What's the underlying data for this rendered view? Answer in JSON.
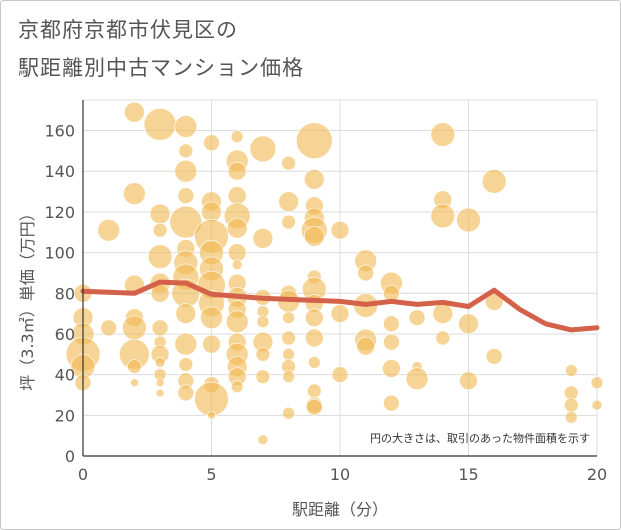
{
  "title_line1": "京都府京都市伏見区の",
  "title_line2": "駅距離別中古マンション価格",
  "note": "円の大きさは、取引のあった物件面積を示す",
  "colors": {
    "bubble": "#f0b954",
    "line": "#d4614a",
    "grid": "#dcdcdc",
    "axis": "#333333",
    "text": "#555555"
  },
  "chart_data": {
    "type": "scatter",
    "xlabel": "駅距離（分）",
    "ylabel": "坪（3.3㎡）単価（万円）",
    "xlim": [
      0,
      20
    ],
    "ylim": [
      0,
      175
    ],
    "xticks": [
      0,
      5,
      10,
      15,
      20
    ],
    "yticks": [
      0,
      20,
      40,
      60,
      80,
      100,
      120,
      140,
      160
    ],
    "grid": true,
    "bubbles": [
      {
        "x": 0,
        "y": 80,
        "s": 9
      },
      {
        "x": 0,
        "y": 68,
        "s": 10
      },
      {
        "x": 0,
        "y": 60,
        "s": 11
      },
      {
        "x": 0,
        "y": 50,
        "s": 17
      },
      {
        "x": 0,
        "y": 44,
        "s": 12
      },
      {
        "x": 0,
        "y": 36,
        "s": 8
      },
      {
        "x": 1,
        "y": 111,
        "s": 11
      },
      {
        "x": 1,
        "y": 63,
        "s": 8
      },
      {
        "x": 2,
        "y": 169,
        "s": 10
      },
      {
        "x": 2,
        "y": 129,
        "s": 11
      },
      {
        "x": 2,
        "y": 84,
        "s": 10
      },
      {
        "x": 2,
        "y": 68,
        "s": 9
      },
      {
        "x": 2,
        "y": 63,
        "s": 12
      },
      {
        "x": 2,
        "y": 50,
        "s": 15
      },
      {
        "x": 2,
        "y": 44,
        "s": 7
      },
      {
        "x": 2,
        "y": 36,
        "s": 4
      },
      {
        "x": 3,
        "y": 163,
        "s": 16
      },
      {
        "x": 3,
        "y": 119,
        "s": 10
      },
      {
        "x": 3,
        "y": 111,
        "s": 7
      },
      {
        "x": 3,
        "y": 98,
        "s": 12
      },
      {
        "x": 3,
        "y": 85,
        "s": 10
      },
      {
        "x": 3,
        "y": 80,
        "s": 9
      },
      {
        "x": 3,
        "y": 63,
        "s": 8
      },
      {
        "x": 3,
        "y": 56,
        "s": 6
      },
      {
        "x": 3,
        "y": 50,
        "s": 9
      },
      {
        "x": 3,
        "y": 46,
        "s": 5
      },
      {
        "x": 3,
        "y": 40,
        "s": 6
      },
      {
        "x": 3,
        "y": 36,
        "s": 4
      },
      {
        "x": 3,
        "y": 31,
        "s": 4
      },
      {
        "x": 4,
        "y": 162,
        "s": 11
      },
      {
        "x": 4,
        "y": 150,
        "s": 7
      },
      {
        "x": 4,
        "y": 140,
        "s": 11
      },
      {
        "x": 4,
        "y": 128,
        "s": 8
      },
      {
        "x": 4,
        "y": 115,
        "s": 16
      },
      {
        "x": 4,
        "y": 102,
        "s": 9
      },
      {
        "x": 4,
        "y": 95,
        "s": 12
      },
      {
        "x": 4,
        "y": 88,
        "s": 13
      },
      {
        "x": 4,
        "y": 80,
        "s": 14
      },
      {
        "x": 4,
        "y": 70,
        "s": 10
      },
      {
        "x": 4,
        "y": 55,
        "s": 11
      },
      {
        "x": 4,
        "y": 45,
        "s": 7
      },
      {
        "x": 4,
        "y": 37,
        "s": 8
      },
      {
        "x": 4,
        "y": 31,
        "s": 8
      },
      {
        "x": 5,
        "y": 154,
        "s": 8
      },
      {
        "x": 5,
        "y": 125,
        "s": 10
      },
      {
        "x": 5,
        "y": 120,
        "s": 10
      },
      {
        "x": 5,
        "y": 108,
        "s": 17
      },
      {
        "x": 5,
        "y": 100,
        "s": 12
      },
      {
        "x": 5,
        "y": 92,
        "s": 12
      },
      {
        "x": 5,
        "y": 84,
        "s": 14
      },
      {
        "x": 5,
        "y": 75,
        "s": 13
      },
      {
        "x": 5,
        "y": 68,
        "s": 11
      },
      {
        "x": 5,
        "y": 55,
        "s": 9
      },
      {
        "x": 5,
        "y": 35,
        "s": 8
      },
      {
        "x": 5,
        "y": 28,
        "s": 17
      },
      {
        "x": 5,
        "y": 20,
        "s": 4
      },
      {
        "x": 6,
        "y": 157,
        "s": 6
      },
      {
        "x": 6,
        "y": 145,
        "s": 11
      },
      {
        "x": 6,
        "y": 140,
        "s": 9
      },
      {
        "x": 6,
        "y": 128,
        "s": 9
      },
      {
        "x": 6,
        "y": 118,
        "s": 13
      },
      {
        "x": 6,
        "y": 112,
        "s": 10
      },
      {
        "x": 6,
        "y": 100,
        "s": 9
      },
      {
        "x": 6,
        "y": 94,
        "s": 5
      },
      {
        "x": 6,
        "y": 85,
        "s": 9
      },
      {
        "x": 6,
        "y": 78,
        "s": 10
      },
      {
        "x": 6,
        "y": 72,
        "s": 9
      },
      {
        "x": 6,
        "y": 66,
        "s": 11
      },
      {
        "x": 6,
        "y": 56,
        "s": 9
      },
      {
        "x": 6,
        "y": 50,
        "s": 11
      },
      {
        "x": 6,
        "y": 44,
        "s": 10
      },
      {
        "x": 6,
        "y": 39,
        "s": 9
      },
      {
        "x": 6,
        "y": 34,
        "s": 6
      },
      {
        "x": 7,
        "y": 151,
        "s": 13
      },
      {
        "x": 7,
        "y": 107,
        "s": 10
      },
      {
        "x": 7,
        "y": 78,
        "s": 8
      },
      {
        "x": 7,
        "y": 71,
        "s": 6
      },
      {
        "x": 7,
        "y": 66,
        "s": 6
      },
      {
        "x": 7,
        "y": 56,
        "s": 10
      },
      {
        "x": 7,
        "y": 50,
        "s": 7
      },
      {
        "x": 7,
        "y": 39,
        "s": 7
      },
      {
        "x": 7,
        "y": 8,
        "s": 5
      },
      {
        "x": 8,
        "y": 144,
        "s": 7
      },
      {
        "x": 8,
        "y": 125,
        "s": 10
      },
      {
        "x": 8,
        "y": 115,
        "s": 7
      },
      {
        "x": 8,
        "y": 80,
        "s": 8
      },
      {
        "x": 8,
        "y": 76,
        "s": 11
      },
      {
        "x": 8,
        "y": 68,
        "s": 6
      },
      {
        "x": 8,
        "y": 58,
        "s": 7
      },
      {
        "x": 8,
        "y": 50,
        "s": 6
      },
      {
        "x": 8,
        "y": 44,
        "s": 7
      },
      {
        "x": 8,
        "y": 39,
        "s": 6
      },
      {
        "x": 8,
        "y": 21,
        "s": 6
      },
      {
        "x": 9,
        "y": 155,
        "s": 18
      },
      {
        "x": 9,
        "y": 136,
        "s": 10
      },
      {
        "x": 9,
        "y": 123,
        "s": 9
      },
      {
        "x": 9,
        "y": 117,
        "s": 10
      },
      {
        "x": 9,
        "y": 111,
        "s": 13
      },
      {
        "x": 9,
        "y": 108,
        "s": 10
      },
      {
        "x": 9,
        "y": 88,
        "s": 7
      },
      {
        "x": 9,
        "y": 82,
        "s": 12
      },
      {
        "x": 9,
        "y": 75,
        "s": 9
      },
      {
        "x": 9,
        "y": 68,
        "s": 9
      },
      {
        "x": 9,
        "y": 58,
        "s": 9
      },
      {
        "x": 9,
        "y": 46,
        "s": 6
      },
      {
        "x": 9,
        "y": 32,
        "s": 7
      },
      {
        "x": 9,
        "y": 25,
        "s": 8
      },
      {
        "x": 9,
        "y": 24,
        "s": 8
      },
      {
        "x": 10,
        "y": 111,
        "s": 9
      },
      {
        "x": 10,
        "y": 70,
        "s": 9
      },
      {
        "x": 10,
        "y": 40,
        "s": 8
      },
      {
        "x": 11,
        "y": 96,
        "s": 11
      },
      {
        "x": 11,
        "y": 90,
        "s": 8
      },
      {
        "x": 11,
        "y": 74,
        "s": 12
      },
      {
        "x": 11,
        "y": 57,
        "s": 11
      },
      {
        "x": 11,
        "y": 54,
        "s": 9
      },
      {
        "x": 12,
        "y": 85,
        "s": 11
      },
      {
        "x": 12,
        "y": 80,
        "s": 8
      },
      {
        "x": 12,
        "y": 65,
        "s": 8
      },
      {
        "x": 12,
        "y": 56,
        "s": 8
      },
      {
        "x": 12,
        "y": 43,
        "s": 9
      },
      {
        "x": 12,
        "y": 26,
        "s": 8
      },
      {
        "x": 13,
        "y": 68,
        "s": 8
      },
      {
        "x": 13,
        "y": 44,
        "s": 5
      },
      {
        "x": 13,
        "y": 38,
        "s": 11
      },
      {
        "x": 14,
        "y": 158,
        "s": 12
      },
      {
        "x": 14,
        "y": 126,
        "s": 9
      },
      {
        "x": 14,
        "y": 118,
        "s": 12
      },
      {
        "x": 14,
        "y": 70,
        "s": 10
      },
      {
        "x": 14,
        "y": 58,
        "s": 7
      },
      {
        "x": 15,
        "y": 116,
        "s": 12
      },
      {
        "x": 15,
        "y": 65,
        "s": 10
      },
      {
        "x": 15,
        "y": 37,
        "s": 9
      },
      {
        "x": 16,
        "y": 135,
        "s": 12
      },
      {
        "x": 16,
        "y": 76,
        "s": 9
      },
      {
        "x": 16,
        "y": 49,
        "s": 8
      },
      {
        "x": 19,
        "y": 42,
        "s": 6
      },
      {
        "x": 19,
        "y": 31,
        "s": 7
      },
      {
        "x": 19,
        "y": 25,
        "s": 7
      },
      {
        "x": 19,
        "y": 19,
        "s": 6
      },
      {
        "x": 20,
        "y": 36,
        "s": 6
      },
      {
        "x": 20,
        "y": 25,
        "s": 5
      }
    ],
    "line": {
      "x": [
        0,
        1,
        2,
        3,
        4,
        5,
        6,
        7,
        8,
        9,
        10,
        11,
        12,
        13,
        14,
        15,
        16,
        17,
        18,
        19,
        20
      ],
      "y": [
        81,
        80.5,
        80,
        85.5,
        85,
        79.5,
        78.5,
        77.5,
        77,
        76.5,
        76,
        74.5,
        76,
        74.5,
        75.5,
        73.5,
        81.5,
        72,
        65,
        62,
        63
      ]
    }
  }
}
